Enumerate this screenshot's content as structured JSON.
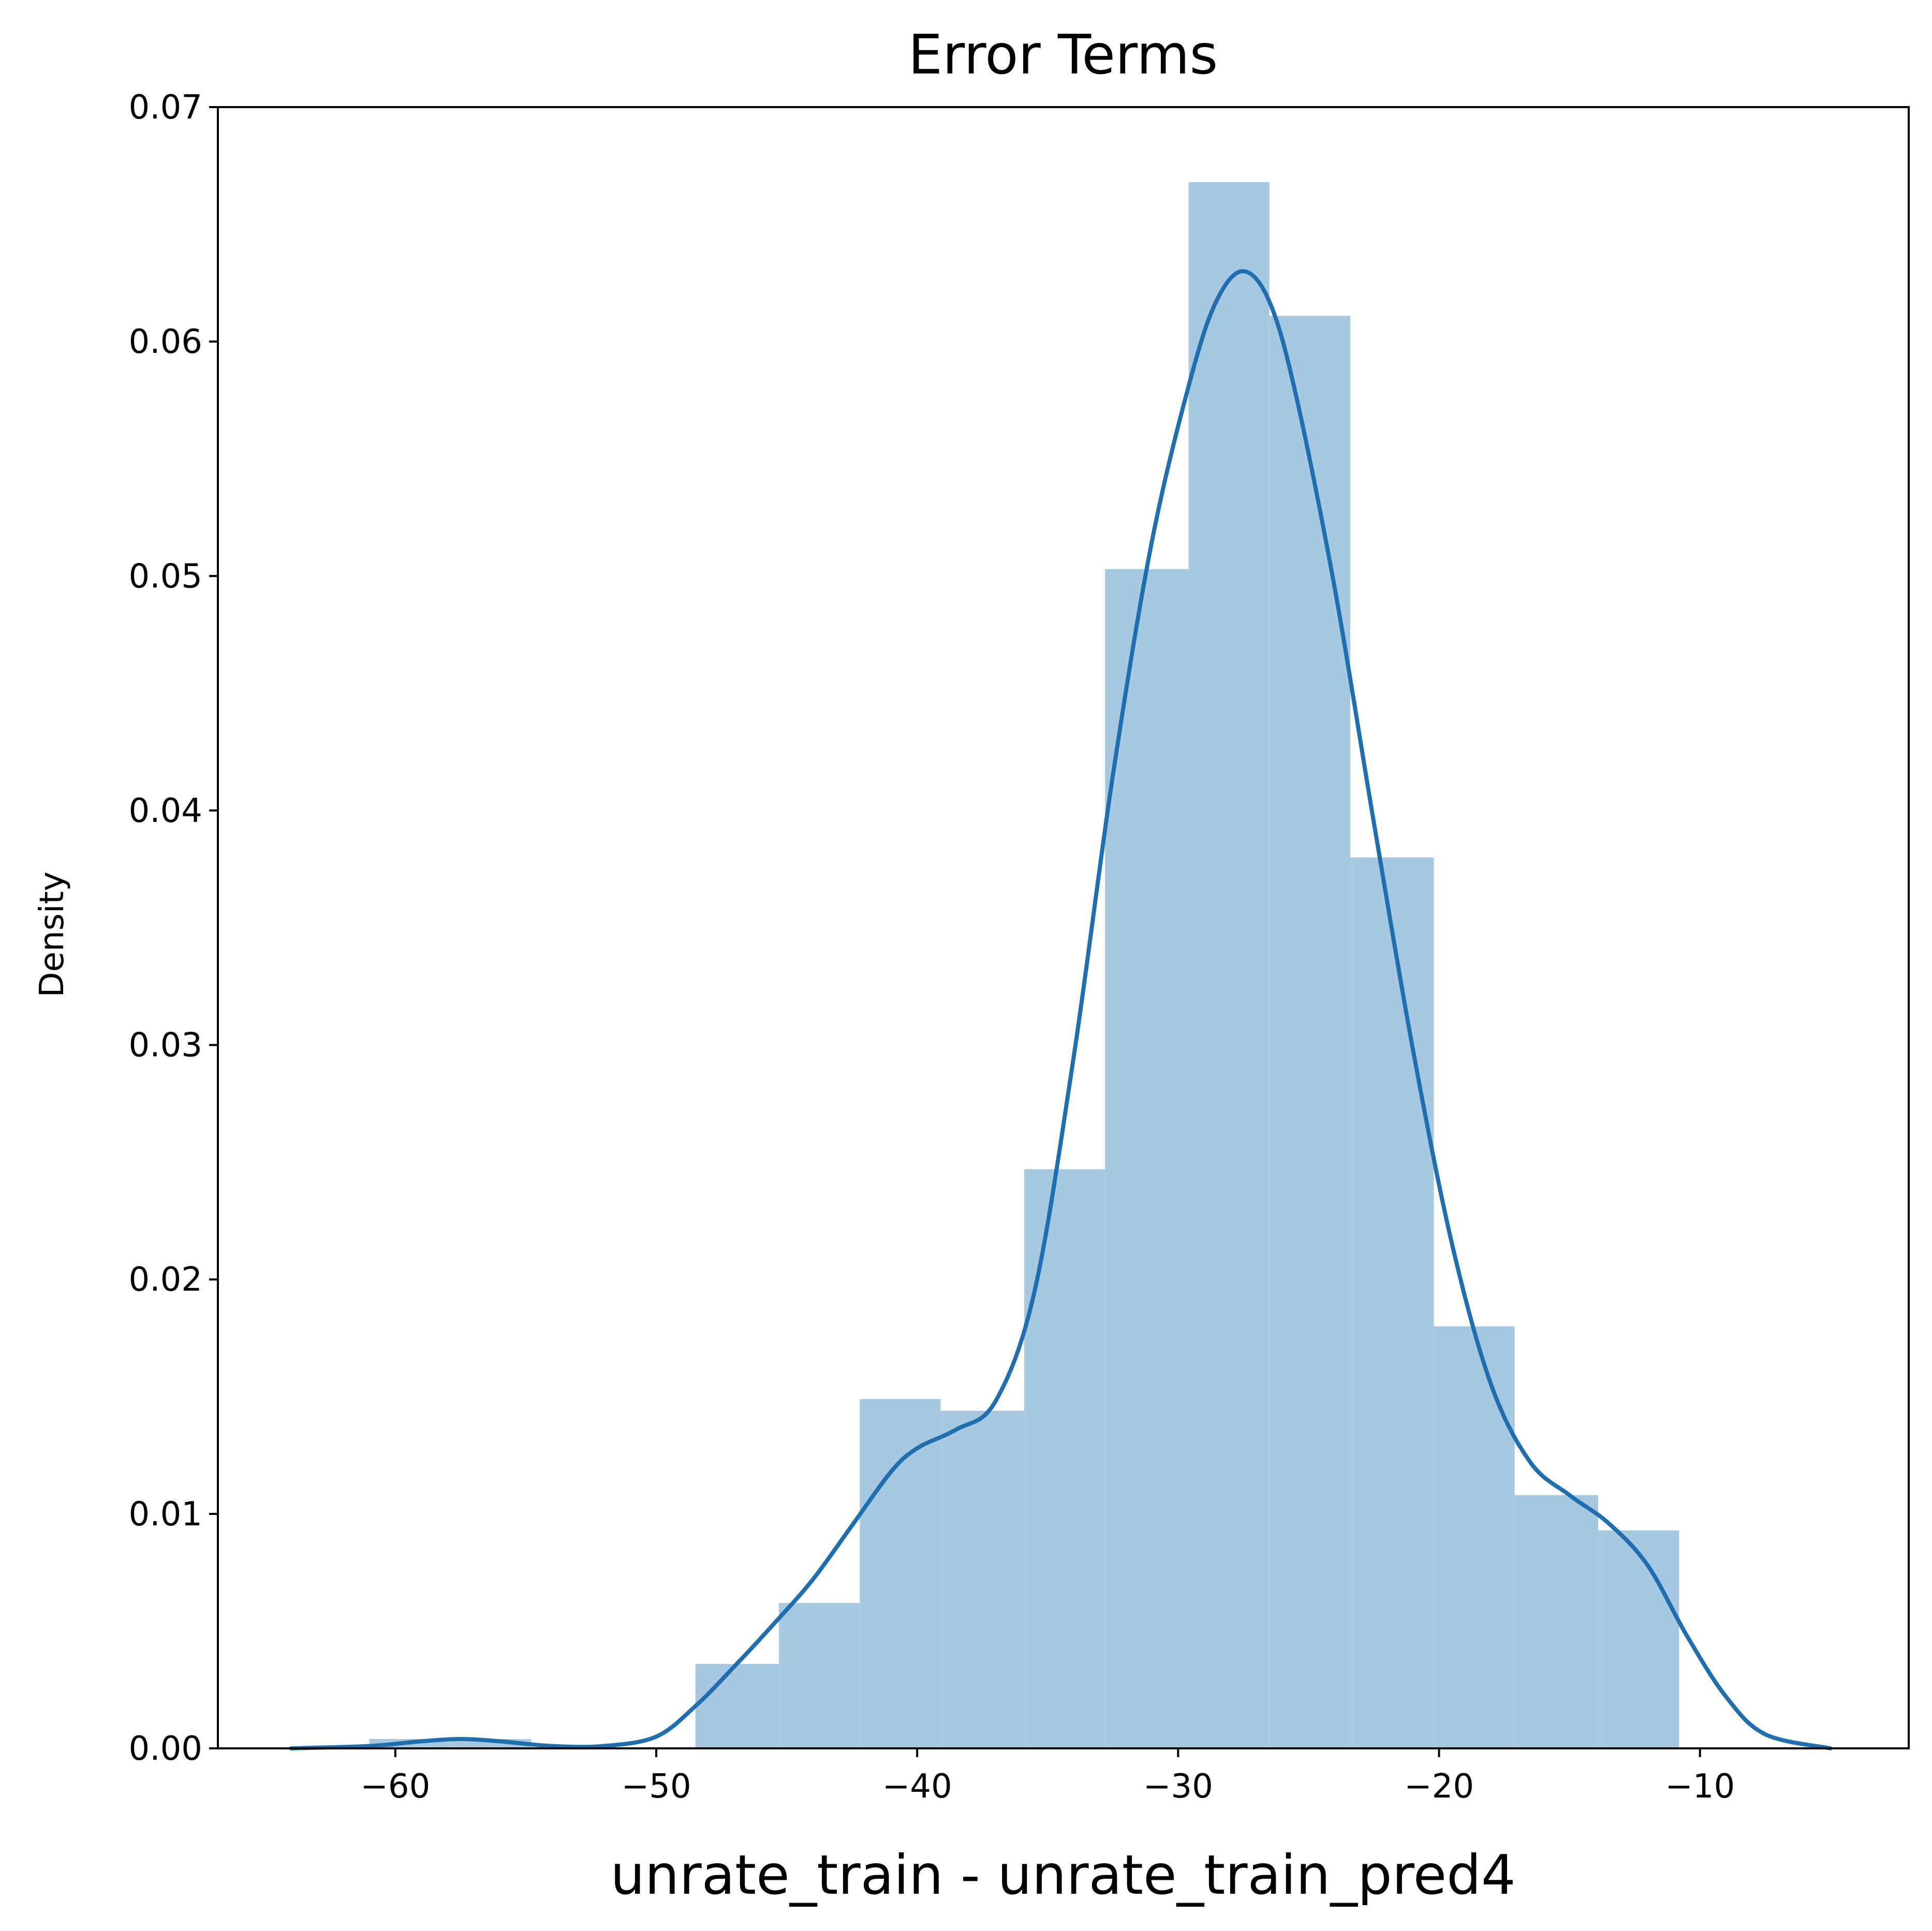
{
  "chart_data": {
    "type": "histogram",
    "title": "Error Terms",
    "xlabel": "unrate_train - unrate_train_pred4",
    "ylabel": "Density",
    "xlim": [
      -66.8,
      -2
    ],
    "ylim": [
      0,
      0.07
    ],
    "grid": false,
    "legend": "none",
    "colors": {
      "bars": "#a6c8e0",
      "kde": "#1f6fb0",
      "axes": "#000000"
    },
    "x_ticks": [
      {
        "value": -60,
        "label": "−60"
      },
      {
        "value": -50,
        "label": "−50"
      },
      {
        "value": -40,
        "label": "−40"
      },
      {
        "value": -30,
        "label": "−30"
      },
      {
        "value": -20,
        "label": "−20"
      },
      {
        "value": -10,
        "label": "−10"
      }
    ],
    "y_ticks": [
      {
        "value": 0.0,
        "label": "0.00"
      },
      {
        "value": 0.01,
        "label": "0.01"
      },
      {
        "value": 0.02,
        "label": "0.02"
      },
      {
        "value": 0.03,
        "label": "0.03"
      },
      {
        "value": 0.04,
        "label": "0.04"
      },
      {
        "value": 0.05,
        "label": "0.05"
      },
      {
        "value": 0.06,
        "label": "0.06"
      },
      {
        "value": 0.07,
        "label": "0.07"
      }
    ],
    "bins": [
      {
        "x0": -61.0,
        "x1": -57.9,
        "value": 0.0004
      },
      {
        "x0": -57.9,
        "x1": -54.8,
        "value": 0.0004
      },
      {
        "x0": -54.8,
        "x1": -51.6,
        "value": 0.0
      },
      {
        "x0": -51.6,
        "x1": -48.5,
        "value": 0.0
      },
      {
        "x0": -48.5,
        "x1": -45.3,
        "value": 0.0036
      },
      {
        "x0": -45.3,
        "x1": -42.2,
        "value": 0.0062
      },
      {
        "x0": -42.2,
        "x1": -39.1,
        "value": 0.0149
      },
      {
        "x0": -39.1,
        "x1": -35.9,
        "value": 0.0144
      },
      {
        "x0": -35.9,
        "x1": -32.8,
        "value": 0.0247
      },
      {
        "x0": -32.8,
        "x1": -29.6,
        "value": 0.0503
      },
      {
        "x0": -29.6,
        "x1": -26.5,
        "value": 0.0668
      },
      {
        "x0": -26.5,
        "x1": -23.4,
        "value": 0.0611
      },
      {
        "x0": -23.4,
        "x1": -20.2,
        "value": 0.038
      },
      {
        "x0": -20.2,
        "x1": -17.1,
        "value": 0.018
      },
      {
        "x0": -17.1,
        "x1": -13.9,
        "value": 0.0108
      },
      {
        "x0": -13.9,
        "x1": -10.8,
        "value": 0.0093
      }
    ],
    "kde": [
      {
        "x": -64.0,
        "y": 0.0
      },
      {
        "x": -61.0,
        "y": 0.0001
      },
      {
        "x": -59.0,
        "y": 0.0003
      },
      {
        "x": -57.5,
        "y": 0.0004
      },
      {
        "x": -56.0,
        "y": 0.0003
      },
      {
        "x": -54.0,
        "y": 0.0001
      },
      {
        "x": -52.0,
        "y": 0.0001
      },
      {
        "x": -50.0,
        "y": 0.0005
      },
      {
        "x": -48.5,
        "y": 0.0018
      },
      {
        "x": -47.0,
        "y": 0.0035
      },
      {
        "x": -45.5,
        "y": 0.0053
      },
      {
        "x": -44.0,
        "y": 0.0072
      },
      {
        "x": -42.5,
        "y": 0.0095
      },
      {
        "x": -41.0,
        "y": 0.0118
      },
      {
        "x": -40.0,
        "y": 0.0128
      },
      {
        "x": -38.5,
        "y": 0.0136
      },
      {
        "x": -37.0,
        "y": 0.0148
      },
      {
        "x": -35.5,
        "y": 0.0195
      },
      {
        "x": -34.0,
        "y": 0.0295
      },
      {
        "x": -32.5,
        "y": 0.0415
      },
      {
        "x": -31.0,
        "y": 0.0515
      },
      {
        "x": -29.5,
        "y": 0.0585
      },
      {
        "x": -28.5,
        "y": 0.0618
      },
      {
        "x": -27.5,
        "y": 0.063
      },
      {
        "x": -26.5,
        "y": 0.0617
      },
      {
        "x": -25.5,
        "y": 0.0578
      },
      {
        "x": -24.0,
        "y": 0.0495
      },
      {
        "x": -22.5,
        "y": 0.0395
      },
      {
        "x": -21.0,
        "y": 0.0298
      },
      {
        "x": -19.5,
        "y": 0.0215
      },
      {
        "x": -18.0,
        "y": 0.0155
      },
      {
        "x": -16.5,
        "y": 0.0122
      },
      {
        "x": -15.0,
        "y": 0.0108
      },
      {
        "x": -13.5,
        "y": 0.0096
      },
      {
        "x": -12.0,
        "y": 0.0078
      },
      {
        "x": -10.5,
        "y": 0.0048
      },
      {
        "x": -9.0,
        "y": 0.0022
      },
      {
        "x": -7.5,
        "y": 0.0006
      },
      {
        "x": -5.0,
        "y": 0.0
      }
    ]
  }
}
